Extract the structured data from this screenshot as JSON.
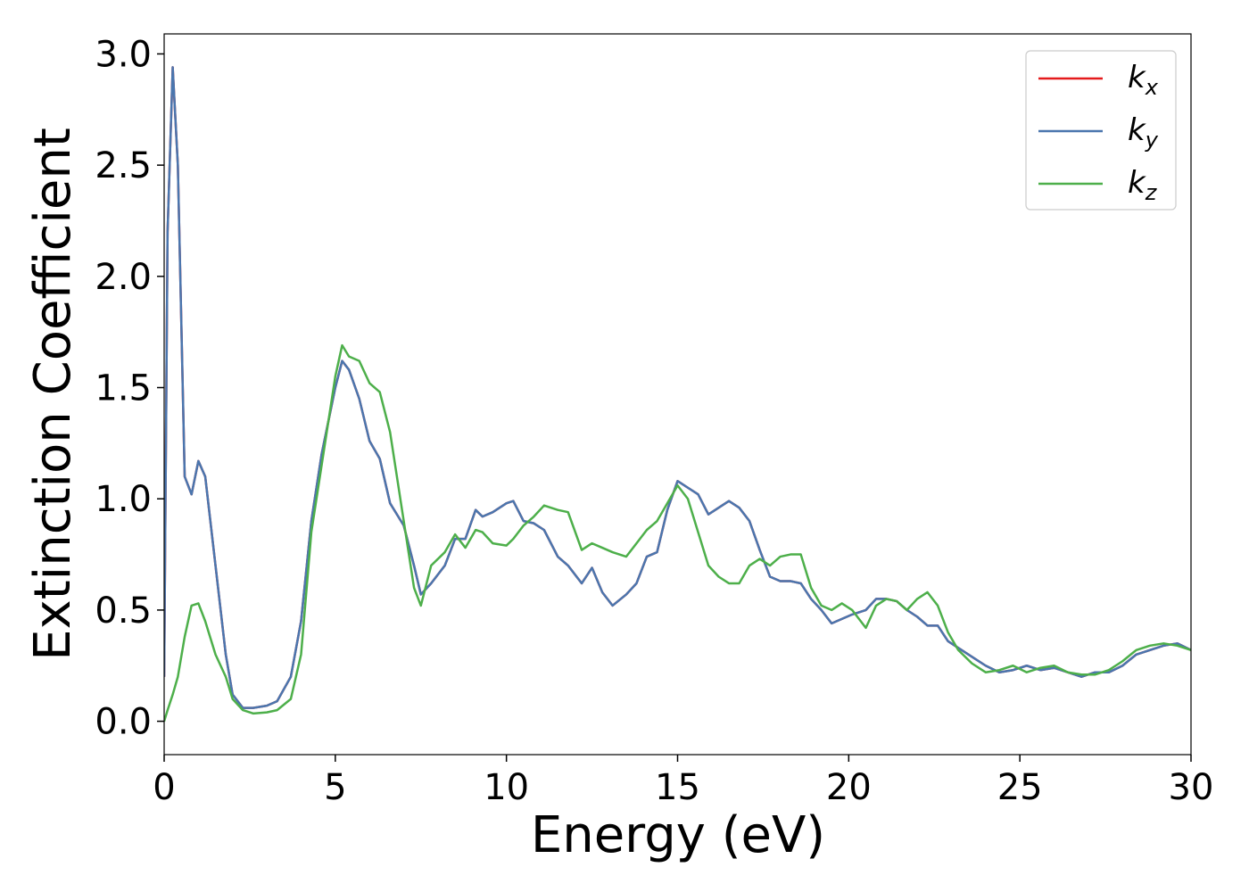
{
  "chart_data": {
    "type": "line",
    "xlabel": "Energy (eV)",
    "ylabel": "Extinction Coefficient",
    "x": [
      0,
      0.1,
      0.25,
      0.4,
      0.6,
      0.8,
      1.0,
      1.2,
      1.5,
      1.8,
      2.0,
      2.3,
      2.6,
      3.0,
      3.3,
      3.7,
      4.0,
      4.3,
      4.6,
      5.0,
      5.2,
      5.4,
      5.7,
      6.0,
      6.3,
      6.6,
      7.0,
      7.3,
      7.5,
      7.8,
      8.2,
      8.5,
      8.8,
      9.1,
      9.3,
      9.6,
      10.0,
      10.2,
      10.5,
      10.8,
      11.1,
      11.5,
      11.8,
      12.2,
      12.5,
      12.8,
      13.1,
      13.5,
      13.8,
      14.1,
      14.4,
      14.7,
      15.0,
      15.3,
      15.6,
      15.9,
      16.2,
      16.5,
      16.8,
      17.1,
      17.4,
      17.7,
      18.0,
      18.3,
      18.6,
      18.9,
      19.2,
      19.5,
      19.8,
      20.1,
      20.5,
      20.8,
      21.1,
      21.4,
      21.7,
      22.0,
      22.3,
      22.6,
      22.9,
      23.2,
      23.6,
      24.0,
      24.4,
      24.8,
      25.2,
      25.6,
      26.0,
      26.4,
      26.8,
      27.2,
      27.6,
      28.0,
      28.4,
      28.8,
      29.2,
      29.6,
      30.0
    ],
    "series": [
      {
        "name": "kx",
        "color": "#e41a1c",
        "values": [
          0.2,
          2.2,
          2.94,
          2.5,
          1.1,
          1.02,
          1.17,
          1.1,
          0.7,
          0.3,
          0.12,
          0.06,
          0.06,
          0.07,
          0.09,
          0.2,
          0.45,
          0.9,
          1.2,
          1.5,
          1.62,
          1.58,
          1.45,
          1.26,
          1.18,
          0.98,
          0.88,
          0.7,
          0.57,
          0.62,
          0.7,
          0.82,
          0.82,
          0.95,
          0.92,
          0.94,
          0.98,
          0.99,
          0.9,
          0.89,
          0.86,
          0.74,
          0.7,
          0.62,
          0.69,
          0.58,
          0.52,
          0.57,
          0.62,
          0.74,
          0.76,
          0.95,
          1.08,
          1.05,
          1.02,
          0.93,
          0.96,
          0.99,
          0.96,
          0.9,
          0.77,
          0.65,
          0.63,
          0.63,
          0.62,
          0.55,
          0.5,
          0.44,
          0.46,
          0.48,
          0.5,
          0.55,
          0.55,
          0.54,
          0.5,
          0.47,
          0.43,
          0.43,
          0.36,
          0.33,
          0.29,
          0.25,
          0.22,
          0.23,
          0.25,
          0.23,
          0.24,
          0.22,
          0.2,
          0.22,
          0.22,
          0.25,
          0.3,
          0.32,
          0.34,
          0.35,
          0.32
        ]
      },
      {
        "name": "ky",
        "color": "#4a76ae",
        "values": [
          0.2,
          2.2,
          2.94,
          2.5,
          1.1,
          1.02,
          1.17,
          1.1,
          0.7,
          0.3,
          0.12,
          0.06,
          0.06,
          0.07,
          0.09,
          0.2,
          0.45,
          0.9,
          1.2,
          1.5,
          1.62,
          1.58,
          1.45,
          1.26,
          1.18,
          0.98,
          0.88,
          0.7,
          0.57,
          0.62,
          0.7,
          0.82,
          0.82,
          0.95,
          0.92,
          0.94,
          0.98,
          0.99,
          0.9,
          0.89,
          0.86,
          0.74,
          0.7,
          0.62,
          0.69,
          0.58,
          0.52,
          0.57,
          0.62,
          0.74,
          0.76,
          0.95,
          1.08,
          1.05,
          1.02,
          0.93,
          0.96,
          0.99,
          0.96,
          0.9,
          0.77,
          0.65,
          0.63,
          0.63,
          0.62,
          0.55,
          0.5,
          0.44,
          0.46,
          0.48,
          0.5,
          0.55,
          0.55,
          0.54,
          0.5,
          0.47,
          0.43,
          0.43,
          0.36,
          0.33,
          0.29,
          0.25,
          0.22,
          0.23,
          0.25,
          0.23,
          0.24,
          0.22,
          0.2,
          0.22,
          0.22,
          0.25,
          0.3,
          0.32,
          0.34,
          0.35,
          0.32
        ]
      },
      {
        "name": "kz",
        "color": "#4daf4a",
        "values": [
          0.0,
          0.05,
          0.12,
          0.2,
          0.38,
          0.52,
          0.53,
          0.45,
          0.3,
          0.2,
          0.1,
          0.05,
          0.035,
          0.04,
          0.05,
          0.1,
          0.3,
          0.85,
          1.15,
          1.55,
          1.69,
          1.64,
          1.62,
          1.52,
          1.48,
          1.3,
          0.9,
          0.6,
          0.52,
          0.7,
          0.76,
          0.84,
          0.78,
          0.86,
          0.85,
          0.8,
          0.79,
          0.82,
          0.88,
          0.92,
          0.97,
          0.95,
          0.94,
          0.77,
          0.8,
          0.78,
          0.76,
          0.74,
          0.8,
          0.86,
          0.9,
          0.98,
          1.06,
          1.0,
          0.85,
          0.7,
          0.65,
          0.62,
          0.62,
          0.7,
          0.73,
          0.7,
          0.74,
          0.75,
          0.75,
          0.6,
          0.52,
          0.5,
          0.53,
          0.5,
          0.42,
          0.52,
          0.55,
          0.54,
          0.5,
          0.55,
          0.58,
          0.52,
          0.4,
          0.32,
          0.26,
          0.22,
          0.23,
          0.25,
          0.22,
          0.24,
          0.25,
          0.22,
          0.21,
          0.21,
          0.23,
          0.27,
          0.32,
          0.34,
          0.35,
          0.34,
          0.32
        ]
      }
    ],
    "xlim": [
      0,
      30
    ],
    "xticks": [
      0,
      5,
      10,
      15,
      20,
      25,
      30
    ],
    "ylim": [
      -0.15,
      3.09
    ],
    "yticks": [
      {
        "value": 0,
        "label": "0.0"
      },
      0.5,
      {
        "value": 1,
        "label": "1.0"
      },
      1.5,
      {
        "value": 2,
        "label": "2.0"
      },
      2.5,
      {
        "value": 3,
        "label": "3.0"
      }
    ],
    "grid": false,
    "legend": "upper right"
  }
}
